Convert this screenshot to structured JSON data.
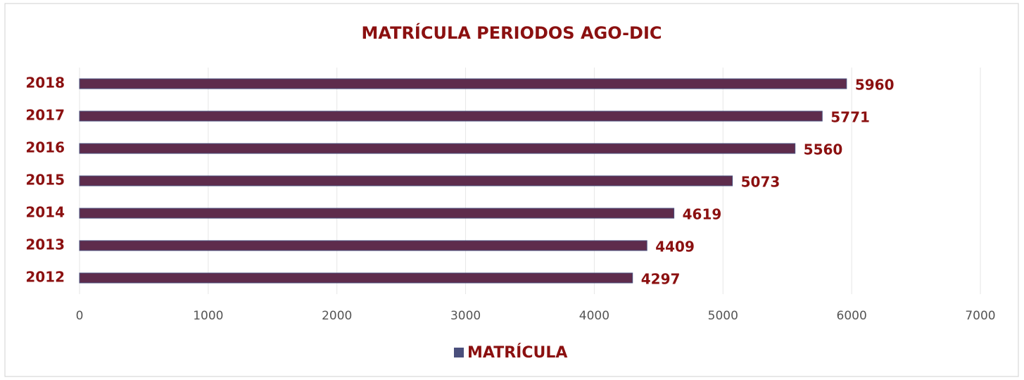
{
  "chart_data": {
    "type": "hbar",
    "title": "MATRÍCULA PERIODOS AGO-DIC",
    "categories": [
      "2018",
      "2017",
      "2016",
      "2015",
      "2014",
      "2013",
      "2012"
    ],
    "series": [
      {
        "name": "MATRÍCULA",
        "color": "#5e2c4c",
        "values": [
          5960,
          5771,
          5560,
          5073,
          4619,
          4409,
          4297
        ]
      }
    ],
    "xlim": [
      0,
      7000
    ],
    "xticks": [
      0,
      1000,
      2000,
      3000,
      4000,
      5000,
      6000,
      7000
    ],
    "grid": true,
    "legend": "bottom"
  }
}
